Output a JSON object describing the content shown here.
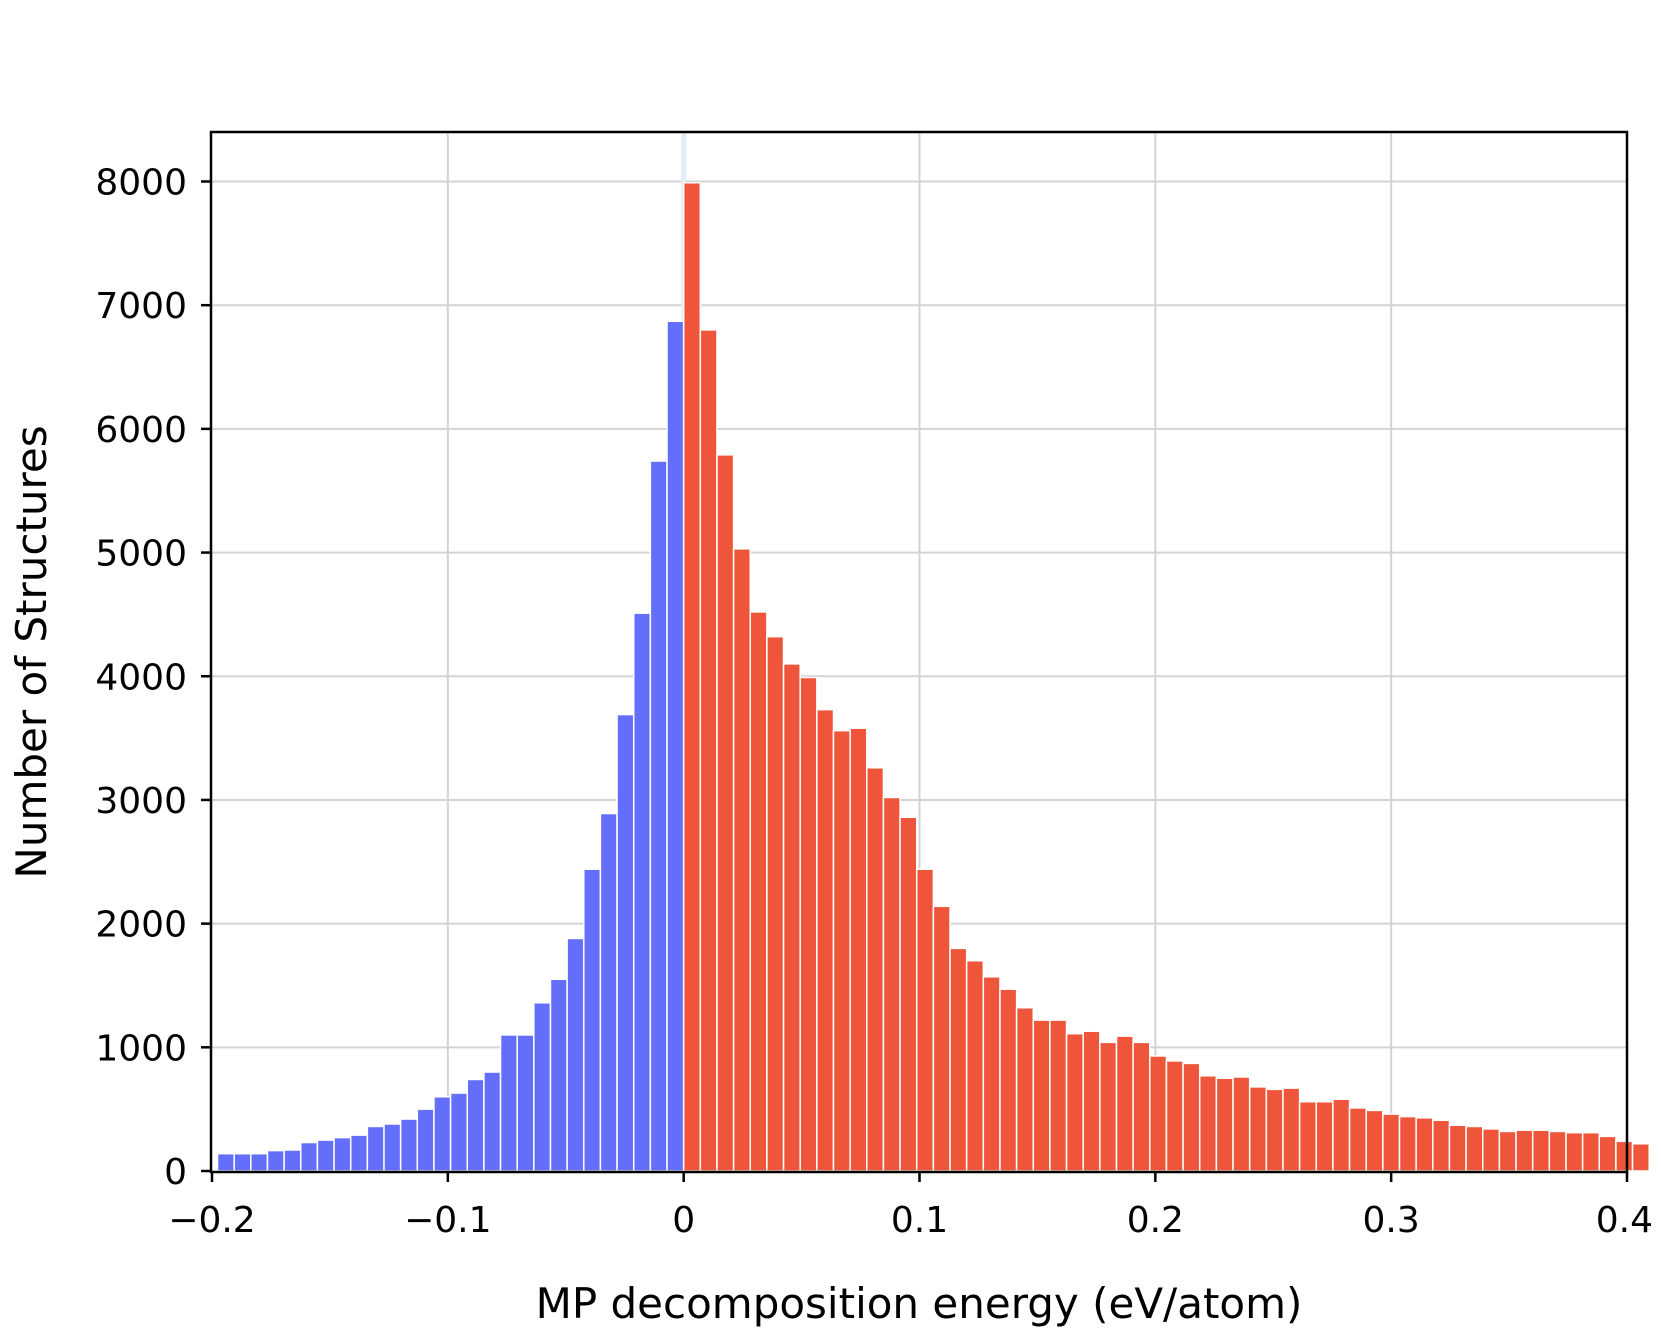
{
  "chart_data": {
    "type": "bar",
    "title": "",
    "xlabel": "MP decomposition energy (eV/atom)",
    "ylabel": "Number of Structures",
    "xlim": [
      -0.2,
      0.4
    ],
    "ylim": [
      0,
      8400
    ],
    "bin_width": 0.007059,
    "bin_start": -0.2,
    "grid": true,
    "colors": {
      "negative": "#636efa",
      "positive": "#ef553b",
      "zero_line": "#e6ecf7"
    },
    "x_ticks": [
      {
        "value": -0.2,
        "label": "−0.2"
      },
      {
        "value": -0.1,
        "label": "−0.1"
      },
      {
        "value": 0,
        "label": "0"
      },
      {
        "value": 0.1,
        "label": "0.1"
      },
      {
        "value": 0.2,
        "label": "0.2"
      },
      {
        "value": 0.3,
        "label": "0.3"
      },
      {
        "value": 0.4,
        "label": "0.4"
      }
    ],
    "y_ticks": [
      {
        "value": 0,
        "label": "0"
      },
      {
        "value": 1000,
        "label": "1000"
      },
      {
        "value": 2000,
        "label": "2000"
      },
      {
        "value": 3000,
        "label": "3000"
      },
      {
        "value": 4000,
        "label": "4000"
      },
      {
        "value": 5000,
        "label": "5000"
      },
      {
        "value": 6000,
        "label": "6000"
      },
      {
        "value": 7000,
        "label": "7000"
      },
      {
        "value": 8000,
        "label": "8000"
      }
    ],
    "series": [
      {
        "name": "negative",
        "color": "#636efa",
        "values": [
          140,
          140,
          140,
          165,
          170,
          230,
          250,
          270,
          290,
          360,
          380,
          420,
          500,
          600,
          630,
          740,
          800,
          1100,
          1100,
          1360,
          1550,
          1880,
          2440,
          2890,
          3690,
          4510,
          5740,
          6870
        ]
      },
      {
        "name": "positive",
        "color": "#ef553b",
        "values": [
          7990,
          6800,
          5790,
          5030,
          4520,
          4320,
          4100,
          3990,
          3730,
          3560,
          3580,
          3260,
          3020,
          2860,
          2440,
          2140,
          1800,
          1700,
          1570,
          1470,
          1320,
          1220,
          1220,
          1110,
          1130,
          1040,
          1090,
          1040,
          930,
          890,
          870,
          770,
          750,
          760,
          680,
          660,
          670,
          560,
          560,
          580,
          510,
          490,
          460,
          440,
          430,
          410,
          370,
          360,
          340,
          320,
          330,
          330,
          320,
          310,
          310,
          280,
          240,
          220
        ]
      }
    ]
  }
}
